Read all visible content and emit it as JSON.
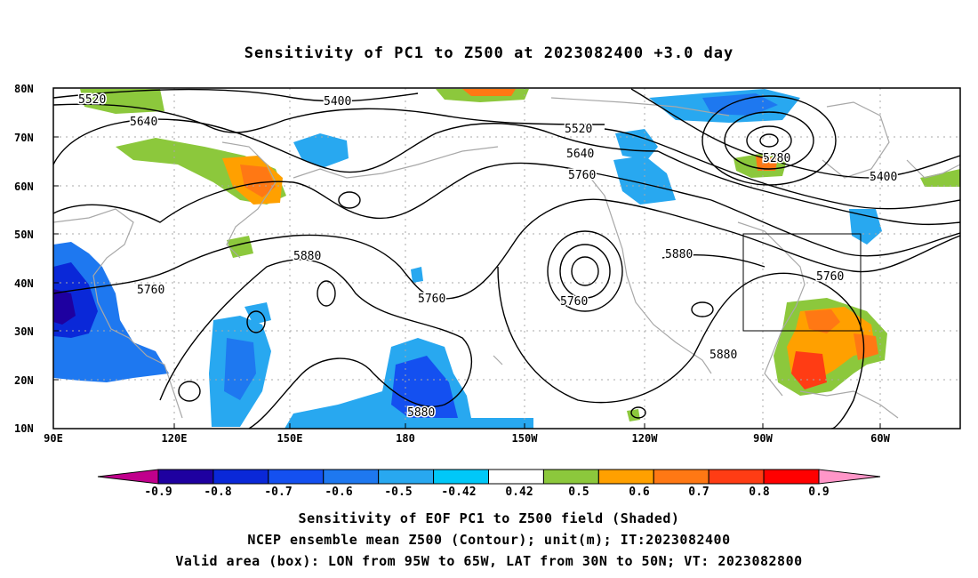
{
  "title": "Sensitivity of PC1 to Z500 at 2023082400 +3.0 day",
  "lat_labels": [
    "80N",
    "70N",
    "60N",
    "50N",
    "40N",
    "30N",
    "20N",
    "10N"
  ],
  "lon_labels": [
    "90E",
    "120E",
    "150E",
    "180",
    "150W",
    "120W",
    "90W",
    "60W"
  ],
  "contour_labels": [
    "5520",
    "5640",
    "5400",
    "5520",
    "5640",
    "5760",
    "5280",
    "5400",
    "5760",
    "5880",
    "5760",
    "5760",
    "5880",
    "5760",
    "5880",
    "5880"
  ],
  "colorbar": {
    "ticks": [
      "-0.9",
      "-0.8",
      "-0.7",
      "-0.6",
      "-0.5",
      "-0.42",
      "0.42",
      "0.5",
      "0.6",
      "0.7",
      "0.8",
      "0.9"
    ],
    "colors": [
      "#c0008c",
      "#1e00a0",
      "#0a28d8",
      "#1450f0",
      "#1e78f0",
      "#28a8f0",
      "#00c8f8",
      "#ffffff",
      "#8cc83c",
      "#ffa000",
      "#ff7814",
      "#ff3c14",
      "#ff0000",
      "#ff96c8"
    ]
  },
  "footer": [
    "Sensitivity of EOF PC1 to Z500 field (Shaded)",
    "NCEP ensemble mean Z500 (Contour); unit(m); IT:2023082400",
    "Valid area (box): LON from 95W to 65W, LAT from 30N to 50N; VT: 2023082800"
  ]
}
